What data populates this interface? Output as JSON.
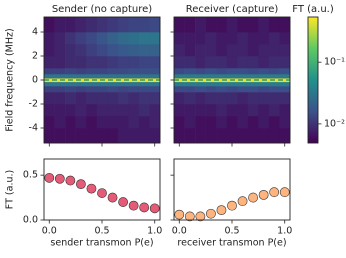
{
  "chart_data": [
    {
      "type": "heatmap",
      "title": "Sender (no capture)",
      "ylabel": "Field frequency (MHz)",
      "cmap": "viridis",
      "x_bins": [
        -0.05,
        0.05,
        0.15,
        0.25,
        0.35,
        0.45,
        0.55,
        0.65,
        0.75,
        0.85,
        0.95,
        1.05
      ],
      "y_bins": [
        -5.25,
        -4,
        -3,
        -2,
        -1,
        -0.5,
        -0.15,
        0.15,
        0.5,
        1,
        2,
        3,
        4,
        5.25
      ],
      "z": [
        [
          0.006,
          0.006,
          0.006,
          0.006,
          0.006,
          0.006,
          0.006,
          0.007,
          0.007,
          0.007,
          0.007
        ],
        [
          0.006,
          0.007,
          0.006,
          0.007,
          0.006,
          0.007,
          0.007,
          0.007,
          0.008,
          0.007,
          0.008
        ],
        [
          0.007,
          0.007,
          0.007,
          0.008,
          0.007,
          0.008,
          0.008,
          0.008,
          0.008,
          0.009,
          0.008
        ],
        [
          0.008,
          0.008,
          0.009,
          0.008,
          0.009,
          0.009,
          0.009,
          0.01,
          0.009,
          0.01,
          0.01
        ],
        [
          0.012,
          0.012,
          0.013,
          0.012,
          0.013,
          0.013,
          0.014,
          0.013,
          0.014,
          0.014,
          0.014
        ],
        [
          0.03,
          0.03,
          0.03,
          0.03,
          0.03,
          0.03,
          0.03,
          0.03,
          0.03,
          0.03,
          0.03
        ],
        [
          0.45,
          0.45,
          0.45,
          0.45,
          0.45,
          0.45,
          0.45,
          0.45,
          0.45,
          0.45,
          0.45
        ],
        [
          0.03,
          0.03,
          0.03,
          0.03,
          0.03,
          0.03,
          0.03,
          0.03,
          0.03,
          0.03,
          0.03
        ],
        [
          0.012,
          0.012,
          0.013,
          0.012,
          0.013,
          0.013,
          0.014,
          0.014,
          0.015,
          0.015,
          0.015
        ],
        [
          0.008,
          0.008,
          0.009,
          0.009,
          0.01,
          0.01,
          0.011,
          0.012,
          0.012,
          0.013,
          0.013
        ],
        [
          0.007,
          0.008,
          0.009,
          0.01,
          0.012,
          0.014,
          0.016,
          0.018,
          0.02,
          0.021,
          0.021
        ],
        [
          0.007,
          0.008,
          0.01,
          0.012,
          0.014,
          0.017,
          0.021,
          0.025,
          0.028,
          0.03,
          0.03
        ],
        [
          0.006,
          0.007,
          0.007,
          0.008,
          0.009,
          0.01,
          0.011,
          0.012,
          0.013,
          0.013,
          0.014
        ]
      ],
      "xlim": [
        -0.05,
        1.05
      ],
      "ylim": [
        -5.25,
        5.25
      ],
      "xticks": [
        0,
        0.5,
        1
      ],
      "yticks": [
        -4,
        -2,
        0,
        2,
        4
      ],
      "hline": 0,
      "hline_color": "#3f9a4f",
      "colorbar": {
        "label": "FT (a.u.)",
        "scale": "log",
        "clim": [
          0.0049,
          0.54
        ],
        "ticks": [
          {
            "value": 0.1,
            "label": "10⁻¹"
          },
          {
            "value": 0.01,
            "label": "10⁻²"
          }
        ]
      }
    },
    {
      "type": "heatmap",
      "title": "Receiver (capture)",
      "cmap": "viridis",
      "x_bins": [
        -0.05,
        0.05,
        0.15,
        0.25,
        0.35,
        0.45,
        0.55,
        0.65,
        0.75,
        0.85,
        0.95,
        1.05
      ],
      "y_bins": [
        -5.25,
        -4,
        -3,
        -2,
        -1,
        -0.5,
        -0.15,
        0.15,
        0.5,
        1,
        2,
        3,
        4,
        5.25
      ],
      "z": [
        [
          0.006,
          0.006,
          0.006,
          0.006,
          0.006,
          0.006,
          0.006,
          0.006,
          0.006,
          0.006,
          0.006
        ],
        [
          0.006,
          0.007,
          0.006,
          0.006,
          0.007,
          0.006,
          0.007,
          0.006,
          0.007,
          0.006,
          0.007
        ],
        [
          0.007,
          0.007,
          0.007,
          0.007,
          0.008,
          0.007,
          0.007,
          0.008,
          0.007,
          0.008,
          0.007
        ],
        [
          0.008,
          0.009,
          0.008,
          0.009,
          0.009,
          0.009,
          0.008,
          0.009,
          0.009,
          0.009,
          0.009
        ],
        [
          0.014,
          0.014,
          0.015,
          0.014,
          0.015,
          0.014,
          0.015,
          0.015,
          0.014,
          0.015,
          0.015
        ],
        [
          0.035,
          0.035,
          0.035,
          0.035,
          0.035,
          0.035,
          0.035,
          0.035,
          0.035,
          0.035,
          0.035
        ],
        [
          0.45,
          0.45,
          0.45,
          0.45,
          0.45,
          0.45,
          0.45,
          0.45,
          0.45,
          0.45,
          0.45
        ],
        [
          0.035,
          0.035,
          0.035,
          0.035,
          0.035,
          0.035,
          0.035,
          0.035,
          0.035,
          0.035,
          0.035
        ],
        [
          0.014,
          0.015,
          0.014,
          0.015,
          0.014,
          0.015,
          0.015,
          0.014,
          0.015,
          0.014,
          0.015
        ],
        [
          0.009,
          0.009,
          0.008,
          0.009,
          0.009,
          0.008,
          0.009,
          0.009,
          0.008,
          0.009,
          0.009
        ],
        [
          0.008,
          0.007,
          0.008,
          0.008,
          0.007,
          0.008,
          0.008,
          0.007,
          0.008,
          0.008,
          0.008
        ],
        [
          0.007,
          0.007,
          0.007,
          0.008,
          0.007,
          0.007,
          0.008,
          0.007,
          0.007,
          0.008,
          0.007
        ],
        [
          0.006,
          0.006,
          0.007,
          0.006,
          0.006,
          0.007,
          0.006,
          0.006,
          0.007,
          0.006,
          0.006
        ]
      ],
      "xlim": [
        -0.05,
        1.05
      ],
      "ylim": [
        -5.25,
        5.25
      ],
      "xticks": [
        0,
        0.5,
        1
      ],
      "yticks": [
        -4,
        -2,
        0,
        2,
        4
      ],
      "hline": 0,
      "hline_color": "#3f9a4f"
    },
    {
      "type": "scatter",
      "ylabel": "FT (a.u.)",
      "xlabel": "sender transmon P(e)",
      "color": "#e45b78",
      "x": [
        0,
        0.1,
        0.2,
        0.3,
        0.4,
        0.5,
        0.6,
        0.7,
        0.8,
        0.9,
        1
      ],
      "values": [
        0.47,
        0.46,
        0.44,
        0.4,
        0.35,
        0.3,
        0.25,
        0.2,
        0.16,
        0.14,
        0.13
      ],
      "xlim": [
        -0.05,
        1.05
      ],
      "ylim": [
        0,
        0.68
      ],
      "xticks": [
        {
          "value": 0,
          "label": "0.0"
        },
        {
          "value": 0.5,
          "label": "0.5"
        },
        {
          "value": 1,
          "label": "1.0"
        }
      ],
      "yticks": [
        {
          "value": 0,
          "label": "0.0"
        },
        {
          "value": 0.5,
          "label": "0.5"
        }
      ]
    },
    {
      "type": "scatter",
      "xlabel": "receiver transmon P(e)",
      "color": "#fdb47e",
      "x": [
        0,
        0.1,
        0.2,
        0.3,
        0.4,
        0.5,
        0.6,
        0.7,
        0.8,
        0.9,
        1
      ],
      "values": [
        0.06,
        0.04,
        0.04,
        0.07,
        0.11,
        0.16,
        0.21,
        0.25,
        0.28,
        0.31,
        0.31
      ],
      "xlim": [
        -0.05,
        1.05
      ],
      "ylim": [
        0,
        0.68
      ],
      "xticks": [
        {
          "value": 0,
          "label": "0.0"
        },
        {
          "value": 0.5,
          "label": "0.5"
        },
        {
          "value": 1,
          "label": "1.0"
        }
      ],
      "yticks": [
        0,
        0.5
      ]
    }
  ]
}
